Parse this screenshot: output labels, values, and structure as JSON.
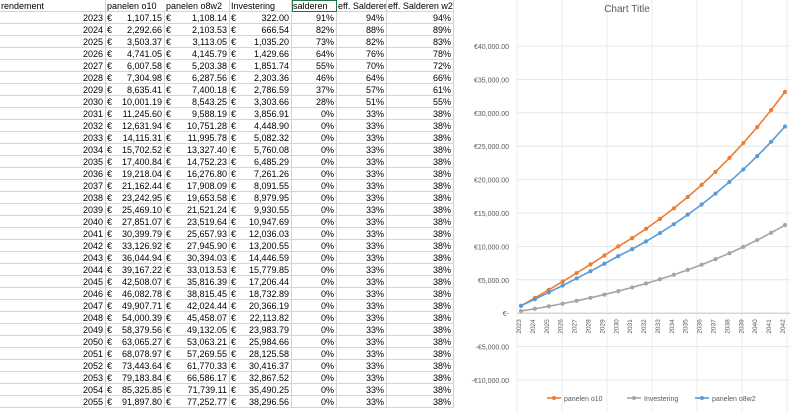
{
  "headers": [
    "rendement",
    "",
    "panelen o10",
    "panelen o8w2",
    "Investering",
    "salderen",
    "eff. Salderen",
    "eff. Salderen w2"
  ],
  "rows": [
    [
      "2023",
      "€",
      "1,107.15",
      "€",
      "1,108.14",
      "€",
      "322.00",
      "91%",
      "94%",
      "94%"
    ],
    [
      "2024",
      "€",
      "2,292.66",
      "€",
      "2,103.53",
      "€",
      "666.54",
      "82%",
      "88%",
      "89%"
    ],
    [
      "2025",
      "€",
      "3,503.37",
      "€",
      "3,113.05",
      "€",
      "1,035.20",
      "73%",
      "82%",
      "83%"
    ],
    [
      "2026",
      "€",
      "4,741.05",
      "€",
      "4,145.79",
      "€",
      "1,429.66",
      "64%",
      "76%",
      "78%"
    ],
    [
      "2027",
      "€",
      "6,007.58",
      "€",
      "5,203.38",
      "€",
      "1,851.74",
      "55%",
      "70%",
      "72%"
    ],
    [
      "2028",
      "€",
      "7,304.98",
      "€",
      "6,287.56",
      "€",
      "2,303.36",
      "46%",
      "64%",
      "66%"
    ],
    [
      "2029",
      "€",
      "8,635.41",
      "€",
      "7,400.18",
      "€",
      "2,786.59",
      "37%",
      "57%",
      "61%"
    ],
    [
      "2030",
      "€",
      "10,001.19",
      "€",
      "8,543.25",
      "€",
      "3,303.66",
      "28%",
      "51%",
      "55%"
    ],
    [
      "2031",
      "€",
      "11,245.60",
      "€",
      "9,588.19",
      "€",
      "3,856.91",
      "0%",
      "33%",
      "38%"
    ],
    [
      "2032",
      "€",
      "12,631.94",
      "€",
      "10,751.28",
      "€",
      "4,448.90",
      "0%",
      "33%",
      "38%"
    ],
    [
      "2033",
      "€",
      "14,115.31",
      "€",
      "11,995.78",
      "€",
      "5,082.32",
      "0%",
      "33%",
      "38%"
    ],
    [
      "2034",
      "€",
      "15,702.52",
      "€",
      "13,327.40",
      "€",
      "5,760.08",
      "0%",
      "33%",
      "38%"
    ],
    [
      "2035",
      "€",
      "17,400.84",
      "€",
      "14,752.23",
      "€",
      "6,485.29",
      "0%",
      "33%",
      "38%"
    ],
    [
      "2036",
      "€",
      "19,218.04",
      "€",
      "16,276.80",
      "€",
      "7,261.26",
      "0%",
      "33%",
      "38%"
    ],
    [
      "2037",
      "€",
      "21,162.44",
      "€",
      "17,908.09",
      "€",
      "8,091.55",
      "0%",
      "33%",
      "38%"
    ],
    [
      "2038",
      "€",
      "23,242.95",
      "€",
      "19,653.58",
      "€",
      "8,979.95",
      "0%",
      "33%",
      "38%"
    ],
    [
      "2039",
      "€",
      "25,469.10",
      "€",
      "21,521.24",
      "€",
      "9,930.55",
      "0%",
      "33%",
      "38%"
    ],
    [
      "2040",
      "€",
      "27,851.07",
      "€",
      "23,519.64",
      "€",
      "10,947.69",
      "0%",
      "33%",
      "38%"
    ],
    [
      "2041",
      "€",
      "30,399.79",
      "€",
      "25,657.93",
      "€",
      "12,036.03",
      "0%",
      "33%",
      "38%"
    ],
    [
      "2042",
      "€",
      "33,126.92",
      "€",
      "27,945.90",
      "€",
      "13,200.55",
      "0%",
      "33%",
      "38%"
    ],
    [
      "2043",
      "€",
      "36,044.94",
      "€",
      "30,394.03",
      "€",
      "14,446.59",
      "0%",
      "33%",
      "38%"
    ],
    [
      "2044",
      "€",
      "39,167.22",
      "€",
      "33,013.53",
      "€",
      "15,779.85",
      "0%",
      "33%",
      "38%"
    ],
    [
      "2045",
      "€",
      "42,508.07",
      "€",
      "35,816.39",
      "€",
      "17,206.44",
      "0%",
      "33%",
      "38%"
    ],
    [
      "2046",
      "€",
      "46,082.78",
      "€",
      "38,815.45",
      "€",
      "18,732.89",
      "0%",
      "33%",
      "38%"
    ],
    [
      "2047",
      "€",
      "49,907.71",
      "€",
      "42,024.44",
      "€",
      "20,366.19",
      "0%",
      "33%",
      "38%"
    ],
    [
      "2048",
      "€",
      "54,000.39",
      "€",
      "45,458.07",
      "€",
      "22,113.82",
      "0%",
      "33%",
      "38%"
    ],
    [
      "2049",
      "€",
      "58,379.56",
      "€",
      "49,132.05",
      "€",
      "23,983.79",
      "0%",
      "33%",
      "38%"
    ],
    [
      "2050",
      "€",
      "63,065.27",
      "€",
      "53,063.21",
      "€",
      "25,984.66",
      "0%",
      "33%",
      "38%"
    ],
    [
      "2051",
      "€",
      "68,078.97",
      "€",
      "57,269.55",
      "€",
      "28,125.58",
      "0%",
      "33%",
      "38%"
    ],
    [
      "2052",
      "€",
      "73,443.64",
      "€",
      "61,770.33",
      "€",
      "30,416.37",
      "0%",
      "33%",
      "38%"
    ],
    [
      "2053",
      "€",
      "79,183.84",
      "€",
      "66,586.17",
      "€",
      "32,867.52",
      "0%",
      "33%",
      "38%"
    ],
    [
      "2054",
      "€",
      "85,325.85",
      "€",
      "71,739.11",
      "€",
      "35,490.25",
      "0%",
      "33%",
      "38%"
    ],
    [
      "2055",
      "€",
      "91,897.80",
      "€",
      "77,252.77",
      "€",
      "38,296.56",
      "0%",
      "33%",
      "38%"
    ]
  ],
  "chart_data": {
    "type": "line",
    "title": "Chart Title",
    "categories": [
      "2023",
      "2024",
      "2025",
      "2026",
      "2027",
      "2028",
      "2029",
      "2030",
      "2031",
      "2032",
      "2033",
      "2034",
      "2035",
      "2036",
      "2037",
      "2038",
      "2039",
      "2040",
      "2041",
      "2042"
    ],
    "series": [
      {
        "name": "panelen o10",
        "color": "#ED7D31",
        "values": [
          1107.15,
          2292.66,
          3503.37,
          4741.05,
          6007.58,
          7304.98,
          8635.41,
          10001.19,
          11245.6,
          12631.94,
          14115.31,
          15702.52,
          17400.84,
          19218.04,
          21162.44,
          23242.95,
          25469.1,
          27851.07,
          30399.79,
          33126.92
        ]
      },
      {
        "name": "Investering",
        "color": "#A5A5A5",
        "values": [
          322.0,
          666.54,
          1035.2,
          1429.66,
          1851.74,
          2303.36,
          2786.59,
          3303.66,
          3856.91,
          4448.9,
          5082.32,
          5760.08,
          6485.29,
          7261.26,
          8091.55,
          8979.95,
          9930.55,
          10947.69,
          12036.03,
          13200.55
        ]
      },
      {
        "name": "panelen o8w2",
        "color": "#5B9BD5",
        "values": [
          1108.14,
          2103.53,
          3113.05,
          4145.79,
          5203.38,
          6287.56,
          7400.18,
          8543.25,
          9588.19,
          10751.28,
          11995.78,
          13327.4,
          14752.23,
          16276.8,
          17908.09,
          19653.58,
          21521.24,
          23519.64,
          25657.93,
          27945.9
        ]
      }
    ],
    "y_ticks": [
      "€40,000.00",
      "€35,000.00",
      "€30,000.00",
      "€25,000.00",
      "€20,000.00",
      "€15,000.00",
      "€10,000.00",
      "€5,000.00",
      "€-",
      "-€5,000.00",
      "-€10,000.00"
    ],
    "ylim": [
      -10000,
      40000
    ],
    "legend_position": "bottom"
  }
}
